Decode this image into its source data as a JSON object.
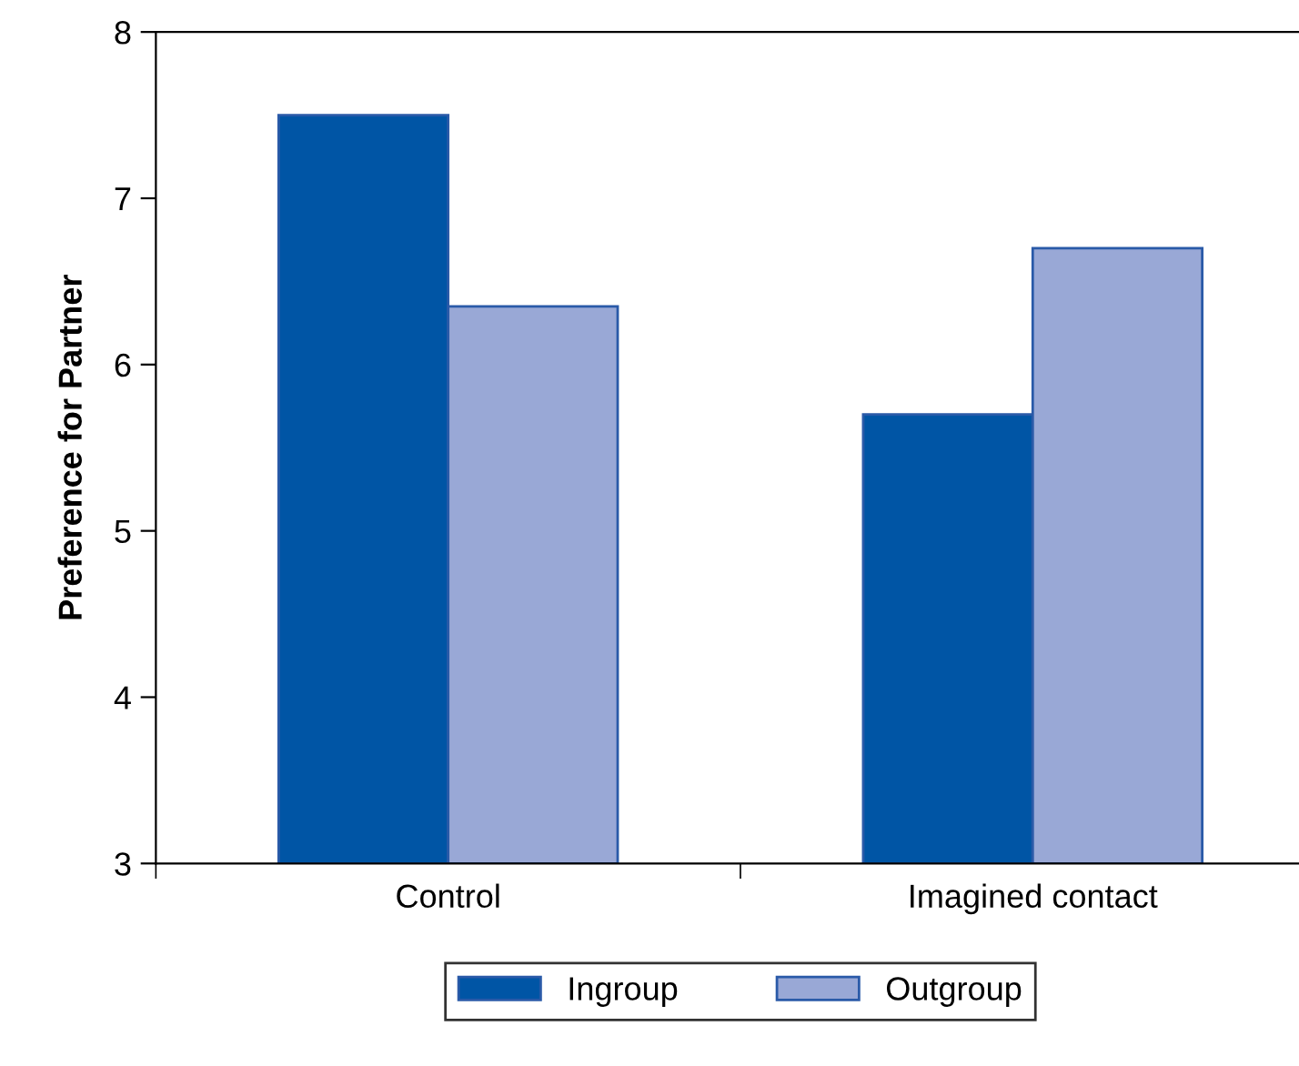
{
  "chart_data": {
    "type": "bar",
    "ylabel": "Preference for Partner",
    "categories": [
      "Control",
      "Imagined contact"
    ],
    "series": [
      {
        "name": "Ingroup",
        "color": "#0055a5",
        "values": [
          7.5,
          5.7
        ]
      },
      {
        "name": "Outgroup",
        "color": "#99a8d6",
        "values": [
          6.35,
          6.7
        ]
      }
    ],
    "ylim": [
      3,
      8
    ],
    "yticks": [
      3,
      4,
      5,
      6,
      7,
      8
    ],
    "grid": false,
    "legend": "bottom"
  }
}
